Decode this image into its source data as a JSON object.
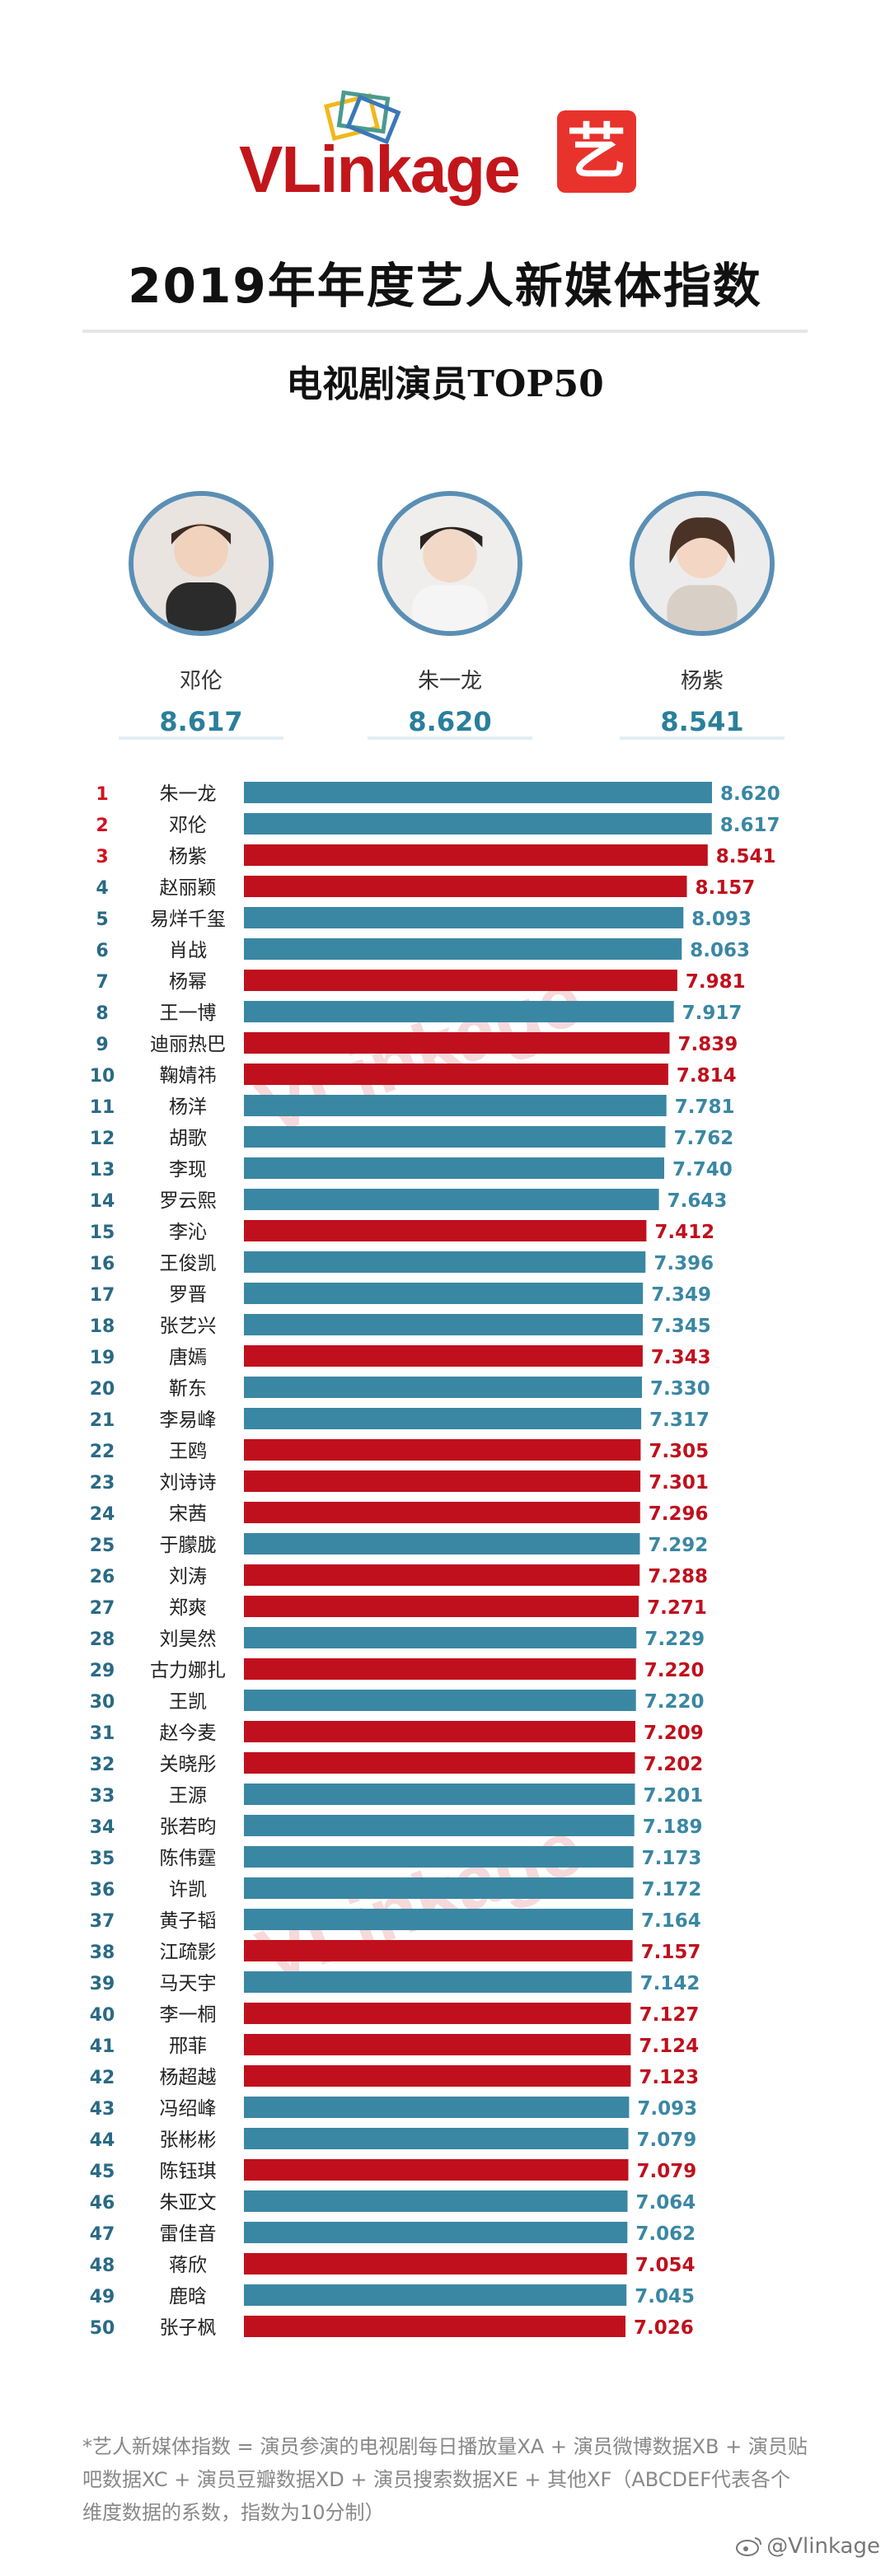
{
  "brand": {
    "logo_text": "VLinkage",
    "badge_char": "艺"
  },
  "title": "2019年年度艺人新媒体指数",
  "subtitle": "电视剧演员TOP50",
  "top3": [
    {
      "name": "邓伦",
      "score": "8.617"
    },
    {
      "name": "朱一龙",
      "score": "8.620"
    },
    {
      "name": "杨紫",
      "score": "8.541"
    }
  ],
  "colors": {
    "blue": "#3a87a3",
    "red": "#c0101d",
    "rank_red": "#d4121e"
  },
  "chart_data": {
    "type": "bar",
    "orientation": "horizontal",
    "xlim": [
      0,
      8.62
    ],
    "ranks": [
      "1",
      "2",
      "3",
      "4",
      "5",
      "6",
      "7",
      "8",
      "9",
      "10",
      "11",
      "12",
      "13",
      "14",
      "15",
      "16",
      "17",
      "18",
      "19",
      "20",
      "21",
      "22",
      "23",
      "24",
      "25",
      "26",
      "27",
      "28",
      "29",
      "30",
      "31",
      "32",
      "33",
      "34",
      "35",
      "36",
      "37",
      "38",
      "39",
      "40",
      "41",
      "42",
      "43",
      "44",
      "45",
      "46",
      "47",
      "48",
      "49",
      "50"
    ],
    "categories": [
      "朱一龙",
      "邓伦",
      "杨紫",
      "赵丽颖",
      "易烊千玺",
      "肖战",
      "杨幂",
      "王一博",
      "迪丽热巴",
      "鞠婧祎",
      "杨洋",
      "胡歌",
      "李现",
      "罗云熙",
      "李沁",
      "王俊凯",
      "罗晋",
      "张艺兴",
      "唐嫣",
      "靳东",
      "李易峰",
      "王鸥",
      "刘诗诗",
      "宋茜",
      "于朦胧",
      "刘涛",
      "郑爽",
      "刘昊然",
      "古力娜扎",
      "王凯",
      "赵今麦",
      "关晓彤",
      "王源",
      "张若昀",
      "陈伟霆",
      "许凯",
      "黄子韬",
      "江疏影",
      "马天宇",
      "李一桐",
      "邢菲",
      "杨超越",
      "冯绍峰",
      "张彬彬",
      "陈钰琪",
      "朱亚文",
      "雷佳音",
      "蒋欣",
      "鹿晗",
      "张子枫"
    ],
    "values": [
      8.62,
      8.617,
      8.541,
      8.157,
      8.093,
      8.063,
      7.981,
      7.917,
      7.839,
      7.814,
      7.781,
      7.762,
      7.74,
      7.643,
      7.412,
      7.396,
      7.349,
      7.345,
      7.343,
      7.33,
      7.317,
      7.305,
      7.301,
      7.296,
      7.292,
      7.288,
      7.271,
      7.229,
      7.22,
      7.22,
      7.209,
      7.202,
      7.201,
      7.189,
      7.173,
      7.172,
      7.164,
      7.157,
      7.142,
      7.127,
      7.124,
      7.123,
      7.093,
      7.079,
      7.079,
      7.064,
      7.062,
      7.054,
      7.045,
      7.026
    ],
    "labels": [
      "8.620",
      "8.617",
      "8.541",
      "8.157",
      "8.093",
      "8.063",
      "7.981",
      "7.917",
      "7.839",
      "7.814",
      "7.781",
      "7.762",
      "7.740",
      "7.643",
      "7.412",
      "7.396",
      "7.349",
      "7.345",
      "7.343",
      "7.330",
      "7.317",
      "7.305",
      "7.301",
      "7.296",
      "7.292",
      "7.288",
      "7.271",
      "7.229",
      "7.220",
      "7.220",
      "7.209",
      "7.202",
      "7.201",
      "7.189",
      "7.173",
      "7.172",
      "7.164",
      "7.157",
      "7.142",
      "7.127",
      "7.124",
      "7.123",
      "7.093",
      "7.079",
      "7.079",
      "7.064",
      "7.062",
      "7.054",
      "7.045",
      "7.026"
    ],
    "gender": [
      "m",
      "m",
      "f",
      "f",
      "m",
      "m",
      "f",
      "m",
      "f",
      "f",
      "m",
      "m",
      "m",
      "m",
      "f",
      "m",
      "m",
      "m",
      "f",
      "m",
      "m",
      "f",
      "f",
      "f",
      "m",
      "f",
      "f",
      "m",
      "f",
      "m",
      "f",
      "f",
      "m",
      "m",
      "m",
      "m",
      "m",
      "f",
      "m",
      "f",
      "f",
      "f",
      "m",
      "m",
      "f",
      "m",
      "m",
      "f",
      "m",
      "f"
    ]
  },
  "watermark": "VLinkage",
  "footnote": "*艺人新媒体指数 = 演员参演的电视剧每日播放量XA + 演员微博数据XB + 演员贴吧数据XC + 演员豆瓣数据XD + 演员搜索数据XE + 其他XF（ABCDEF代表各个维度数据的系数，指数为10分制）",
  "credit": "@Vlinkage"
}
